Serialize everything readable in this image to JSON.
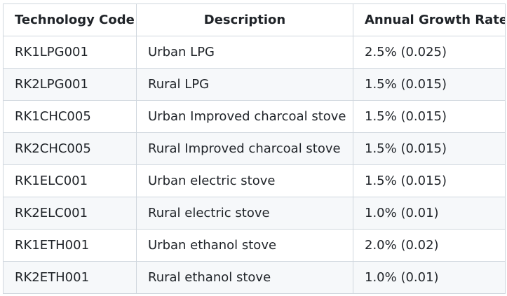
{
  "table": {
    "headers": [
      "Technology Code",
      "Description",
      "Annual Growth Rate"
    ],
    "rows": [
      [
        "RK1LPG001",
        "Urban LPG",
        "2.5% (0.025)"
      ],
      [
        "RK2LPG001",
        "Rural LPG",
        "1.5% (0.015)"
      ],
      [
        "RK1CHC005",
        "Urban Improved charcoal stove",
        "1.5% (0.015)"
      ],
      [
        "RK2CHC005",
        "Rural Improved charcoal stove",
        "1.5% (0.015)"
      ],
      [
        "RK1ELC001",
        "Urban electric stove",
        "1.5% (0.015)"
      ],
      [
        "RK2ELC001",
        "Rural electric stove",
        "1.0% (0.01)"
      ],
      [
        "RK1ETH001",
        "Urban ethanol stove",
        "2.0% (0.02)"
      ],
      [
        "RK2ETH001",
        "Rural ethanol stove",
        "1.0% (0.01)"
      ]
    ]
  }
}
